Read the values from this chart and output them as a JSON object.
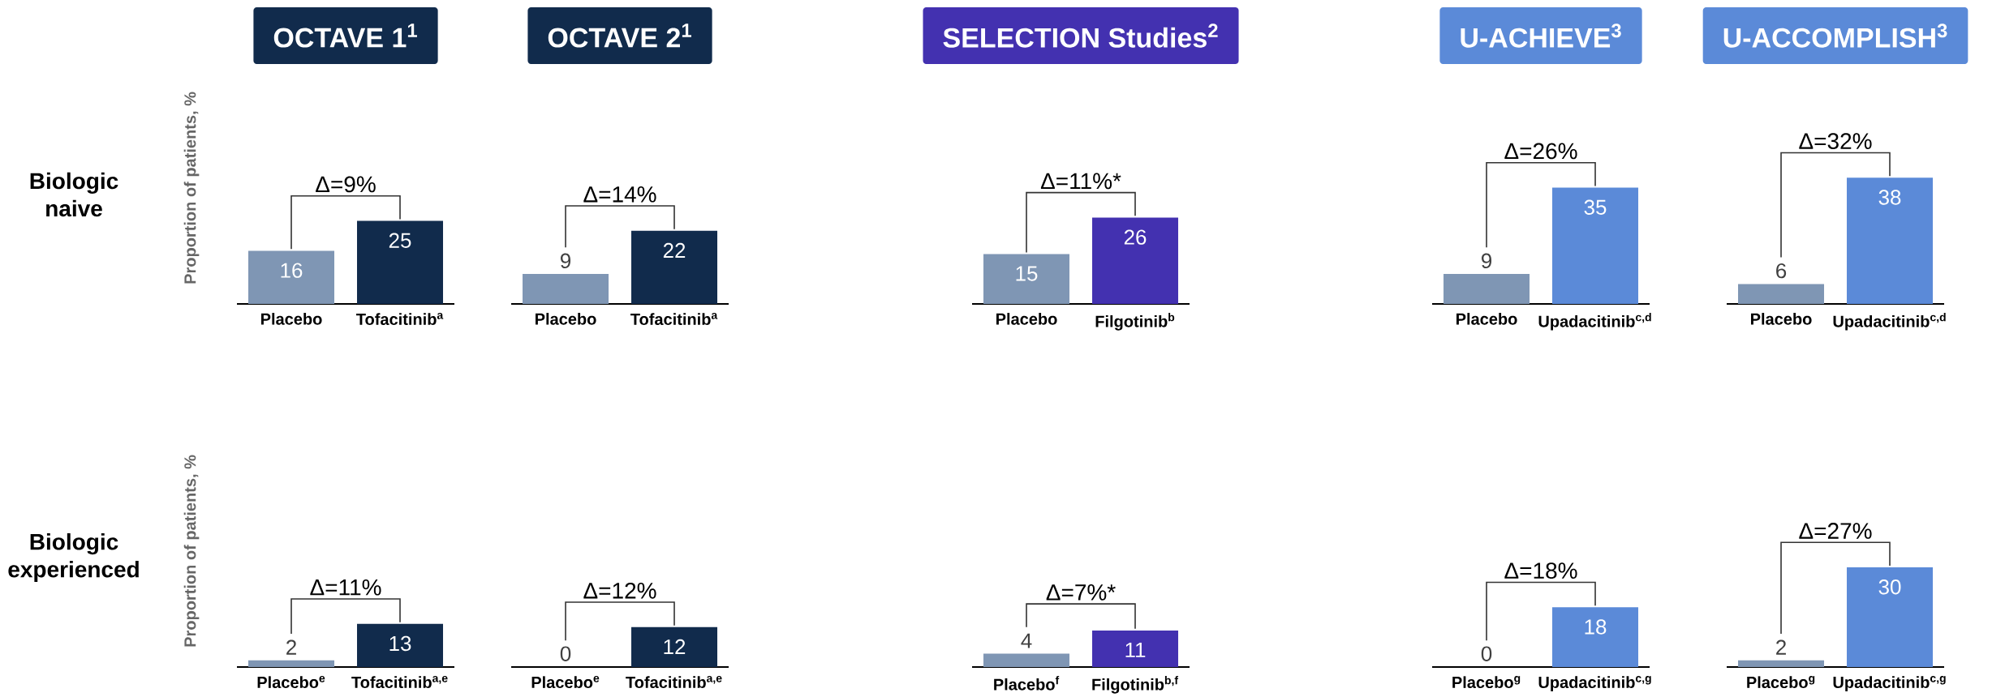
{
  "chart_data": [
    {
      "type": "bar",
      "title": "OCTAVE 1$^{1}$",
      "ylabel": "Proportion of patients, %",
      "categories": [
        "Placebo",
        "Tofacitinib$^{a}$"
      ],
      "values": [
        16,
        25
      ],
      "colors": [
        "#7f96b4",
        "#112b4c"
      ],
      "data_labels": true,
      "annotations": [
        "Biologic naive",
        "Δ=9%"
      ]
    },
    {
      "type": "bar",
      "title": "OCTAVE 2$^{1}$",
      "categories": [
        "Placebo",
        "Tofacitinib$^{a}$"
      ],
      "values": [
        9,
        22
      ],
      "colors": [
        "#7f96b4",
        "#112b4c"
      ],
      "data_labels": true,
      "annotations": [
        "Δ=14%"
      ]
    },
    {
      "type": "bar",
      "title": "SELECTION Studies$^{2}$",
      "categories": [
        "Placebo",
        "Filgotinib$^{b}$"
      ],
      "values": [
        15,
        26
      ],
      "colors": [
        "#7f96b4",
        "#4331b0"
      ],
      "data_labels": true,
      "annotations": [
        "Δ=11%*"
      ]
    },
    {
      "type": "bar",
      "title": "U-ACHIEVE$^{3}$",
      "categories": [
        "Placebo",
        "Upadacitinib$^{c,d}$"
      ],
      "values": [
        9,
        35
      ],
      "colors": [
        "#7f96b4",
        "#5b8ad8"
      ],
      "data_labels": true,
      "annotations": [
        "Δ=26%"
      ]
    },
    {
      "type": "bar",
      "title": "U-ACCOMPLISH$^{3}$",
      "categories": [
        "Placebo",
        "Upadacitinib$^{c,d}$"
      ],
      "values": [
        6,
        38
      ],
      "colors": [
        "#7f96b4",
        "#5b8ad8"
      ],
      "data_labels": true,
      "annotations": [
        "Δ=32%"
      ]
    },
    {
      "type": "bar",
      "ylabel": "Proportion of patients, %",
      "categories": [
        "Placebo$^{e}$",
        "Tofacitinib$^{a,e}$"
      ],
      "values": [
        2,
        13
      ],
      "colors": [
        "#7f96b4",
        "#112b4c"
      ],
      "data_labels": true,
      "annotations": [
        "Biologic experienced",
        "Δ=11%"
      ]
    },
    {
      "type": "bar",
      "categories": [
        "Placebo$^{e}$",
        "Tofacitinib$^{a,e}$"
      ],
      "values": [
        0,
        12
      ],
      "colors": [
        "#7f96b4",
        "#112b4c"
      ],
      "data_labels": true,
      "annotations": [
        "Δ=12%"
      ]
    },
    {
      "type": "bar",
      "categories": [
        "Placebo$^{f}$",
        "Filgotinib$^{b,f}$"
      ],
      "values": [
        4,
        11
      ],
      "colors": [
        "#7f96b4",
        "#4331b0"
      ],
      "data_labels": true,
      "annotations": [
        "Δ=7%*"
      ]
    },
    {
      "type": "bar",
      "categories": [
        "Placebo$^{g}$",
        "Upadacitinib$^{c,g}$"
      ],
      "values": [
        0,
        18
      ],
      "colors": [
        "#7f96b4",
        "#5b8ad8"
      ],
      "data_labels": true,
      "annotations": [
        "Δ=18%"
      ]
    },
    {
      "type": "bar",
      "categories": [
        "Placebo$^{g}$",
        "Upadacitinib$^{c,g}$"
      ],
      "values": [
        2,
        30
      ],
      "colors": [
        "#7f96b4",
        "#5b8ad8"
      ],
      "data_labels": true,
      "annotations": [
        "Δ=27%"
      ]
    }
  ]
}
